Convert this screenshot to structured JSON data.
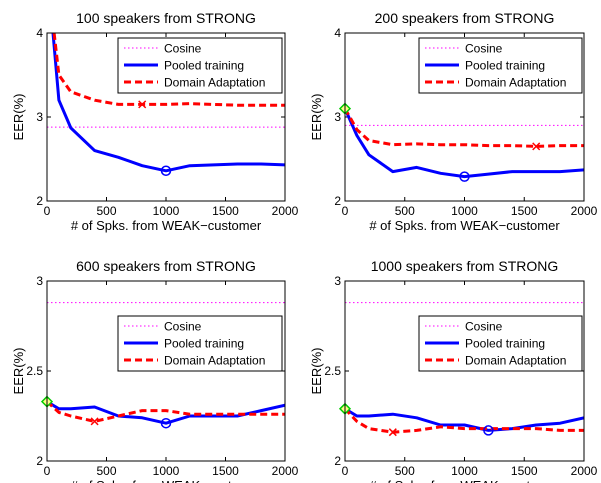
{
  "chart_data": [
    {
      "type": "line",
      "title": "100 speakers from STRONG",
      "xlabel": "# of Spks. from WEAK−customer",
      "ylabel": "EER(%)",
      "xlim": [
        0,
        2000
      ],
      "ylim": [
        2,
        4
      ],
      "xticks": [
        "0",
        "500",
        "1000",
        "1500",
        "2000"
      ],
      "yticks": [
        "2",
        "3",
        "4"
      ],
      "grid": false,
      "legend_position": "top-right",
      "series": [
        {
          "name": "Cosine",
          "style": "dotted",
          "color": "#ff00ff",
          "x": [
            0,
            2000
          ],
          "y": [
            2.88,
            2.88
          ]
        },
        {
          "name": "Pooled training",
          "style": "solid",
          "color": "#0000ff",
          "x": [
            50,
            100,
            200,
            400,
            600,
            800,
            1000,
            1200,
            1400,
            1600,
            1800,
            2000
          ],
          "y": [
            4.0,
            3.2,
            2.87,
            2.6,
            2.52,
            2.42,
            2.36,
            2.42,
            2.43,
            2.44,
            2.44,
            2.43
          ],
          "marker": {
            "type": "circle",
            "x": 1000,
            "y": 2.36
          }
        },
        {
          "name": "Domain Adaptation",
          "style": "dashed",
          "color": "#ff0000",
          "x": [
            60,
            100,
            200,
            400,
            600,
            800,
            1000,
            1200,
            1400,
            1600,
            1800,
            2000
          ],
          "y": [
            4.0,
            3.5,
            3.3,
            3.2,
            3.15,
            3.15,
            3.15,
            3.16,
            3.15,
            3.14,
            3.14,
            3.14
          ],
          "marker": {
            "type": "x",
            "x": 800,
            "y": 3.15
          }
        }
      ]
    },
    {
      "type": "line",
      "title": "200 speakers from STRONG",
      "xlabel": "# of Spks. from WEAK−customer",
      "ylabel": "EER(%)",
      "xlim": [
        0,
        2000
      ],
      "ylim": [
        2,
        4
      ],
      "xticks": [
        "0",
        "500",
        "1000",
        "1500",
        "2000"
      ],
      "yticks": [
        "2",
        "3",
        "4"
      ],
      "grid": false,
      "legend_position": "top-right",
      "series": [
        {
          "name": "Cosine",
          "style": "dotted",
          "color": "#ff00ff",
          "x": [
            0,
            2000
          ],
          "y": [
            2.9,
            2.9
          ]
        },
        {
          "name": "Pooled training",
          "style": "solid",
          "color": "#0000ff",
          "x": [
            0,
            100,
            200,
            400,
            600,
            800,
            1000,
            1200,
            1400,
            1600,
            1800,
            2000
          ],
          "y": [
            3.1,
            2.78,
            2.55,
            2.35,
            2.4,
            2.33,
            2.29,
            2.32,
            2.35,
            2.35,
            2.35,
            2.37
          ],
          "marker": {
            "type": "circle",
            "x": 1000,
            "y": 2.29
          }
        },
        {
          "name": "Domain Adaptation",
          "style": "dashed",
          "color": "#ff0000",
          "x": [
            0,
            100,
            200,
            400,
            600,
            800,
            1000,
            1200,
            1400,
            1600,
            1800,
            2000
          ],
          "y": [
            3.1,
            2.85,
            2.72,
            2.67,
            2.68,
            2.67,
            2.67,
            2.66,
            2.66,
            2.65,
            2.66,
            2.66
          ],
          "marker": {
            "type": "x",
            "x": 1600,
            "y": 2.65
          }
        },
        {
          "name": "",
          "style": "none",
          "color": "#00cc00",
          "x": [
            0
          ],
          "y": [
            3.1
          ],
          "marker": {
            "type": "diamond",
            "x": 0,
            "y": 3.1
          }
        }
      ]
    },
    {
      "type": "line",
      "title": "600 speakers from STRONG",
      "xlabel": "# of Spks. from WEAK−customer",
      "ylabel": "EER(%)",
      "xlim": [
        0,
        2000
      ],
      "ylim": [
        2,
        3
      ],
      "xticks": [
        "0",
        "500",
        "1000",
        "1500",
        "2000"
      ],
      "yticks": [
        "2",
        "2.5",
        "3"
      ],
      "grid": false,
      "legend_position": "center-right",
      "series": [
        {
          "name": "Cosine",
          "style": "dotted",
          "color": "#ff00ff",
          "x": [
            0,
            2000
          ],
          "y": [
            2.88,
            2.88
          ]
        },
        {
          "name": "Pooled training",
          "style": "solid",
          "color": "#0000ff",
          "x": [
            0,
            100,
            200,
            400,
            600,
            800,
            1000,
            1200,
            1400,
            1600,
            1800,
            2000
          ],
          "y": [
            2.33,
            2.29,
            2.29,
            2.3,
            2.25,
            2.24,
            2.21,
            2.25,
            2.25,
            2.25,
            2.28,
            2.31
          ],
          "marker": {
            "type": "circle",
            "x": 1000,
            "y": 2.21
          }
        },
        {
          "name": "Domain Adaptation",
          "style": "dashed",
          "color": "#ff0000",
          "x": [
            0,
            100,
            200,
            400,
            600,
            800,
            1000,
            1200,
            1400,
            1600,
            1800,
            2000
          ],
          "y": [
            2.33,
            2.27,
            2.25,
            2.22,
            2.25,
            2.28,
            2.28,
            2.26,
            2.26,
            2.26,
            2.26,
            2.26
          ],
          "marker": {
            "type": "x",
            "x": 400,
            "y": 2.22
          }
        },
        {
          "name": "",
          "style": "none",
          "color": "#00cc00",
          "x": [
            0
          ],
          "y": [
            2.33
          ],
          "marker": {
            "type": "diamond",
            "x": 0,
            "y": 2.33
          }
        }
      ]
    },
    {
      "type": "line",
      "title": "1000 speakers from STRONG",
      "xlabel": "# of Spks. from WEAK−customer",
      "ylabel": "EER(%)",
      "xlim": [
        0,
        2000
      ],
      "ylim": [
        2,
        3
      ],
      "xticks": [
        "0",
        "500",
        "1000",
        "1500",
        "2000"
      ],
      "yticks": [
        "2",
        "2.5",
        "3"
      ],
      "grid": false,
      "legend_position": "center-right",
      "series": [
        {
          "name": "Cosine",
          "style": "dotted",
          "color": "#ff00ff",
          "x": [
            0,
            2000
          ],
          "y": [
            2.88,
            2.88
          ]
        },
        {
          "name": "Pooled training",
          "style": "solid",
          "color": "#0000ff",
          "x": [
            0,
            100,
            200,
            400,
            600,
            800,
            1000,
            1200,
            1400,
            1600,
            1800,
            2000
          ],
          "y": [
            2.29,
            2.25,
            2.25,
            2.26,
            2.24,
            2.2,
            2.2,
            2.17,
            2.18,
            2.2,
            2.21,
            2.24
          ],
          "marker": {
            "type": "circle",
            "x": 1200,
            "y": 2.17
          }
        },
        {
          "name": "Domain Adaptation",
          "style": "dashed",
          "color": "#ff0000",
          "x": [
            0,
            100,
            200,
            400,
            600,
            800,
            1000,
            1200,
            1400,
            1600,
            1800,
            2000
          ],
          "y": [
            2.29,
            2.22,
            2.18,
            2.16,
            2.17,
            2.19,
            2.18,
            2.18,
            2.18,
            2.18,
            2.17,
            2.17
          ],
          "marker": {
            "type": "x",
            "x": 400,
            "y": 2.16
          }
        },
        {
          "name": "",
          "style": "none",
          "color": "#00cc00",
          "x": [
            0
          ],
          "y": [
            2.29
          ],
          "marker": {
            "type": "diamond",
            "x": 0,
            "y": 2.29
          }
        }
      ]
    }
  ]
}
